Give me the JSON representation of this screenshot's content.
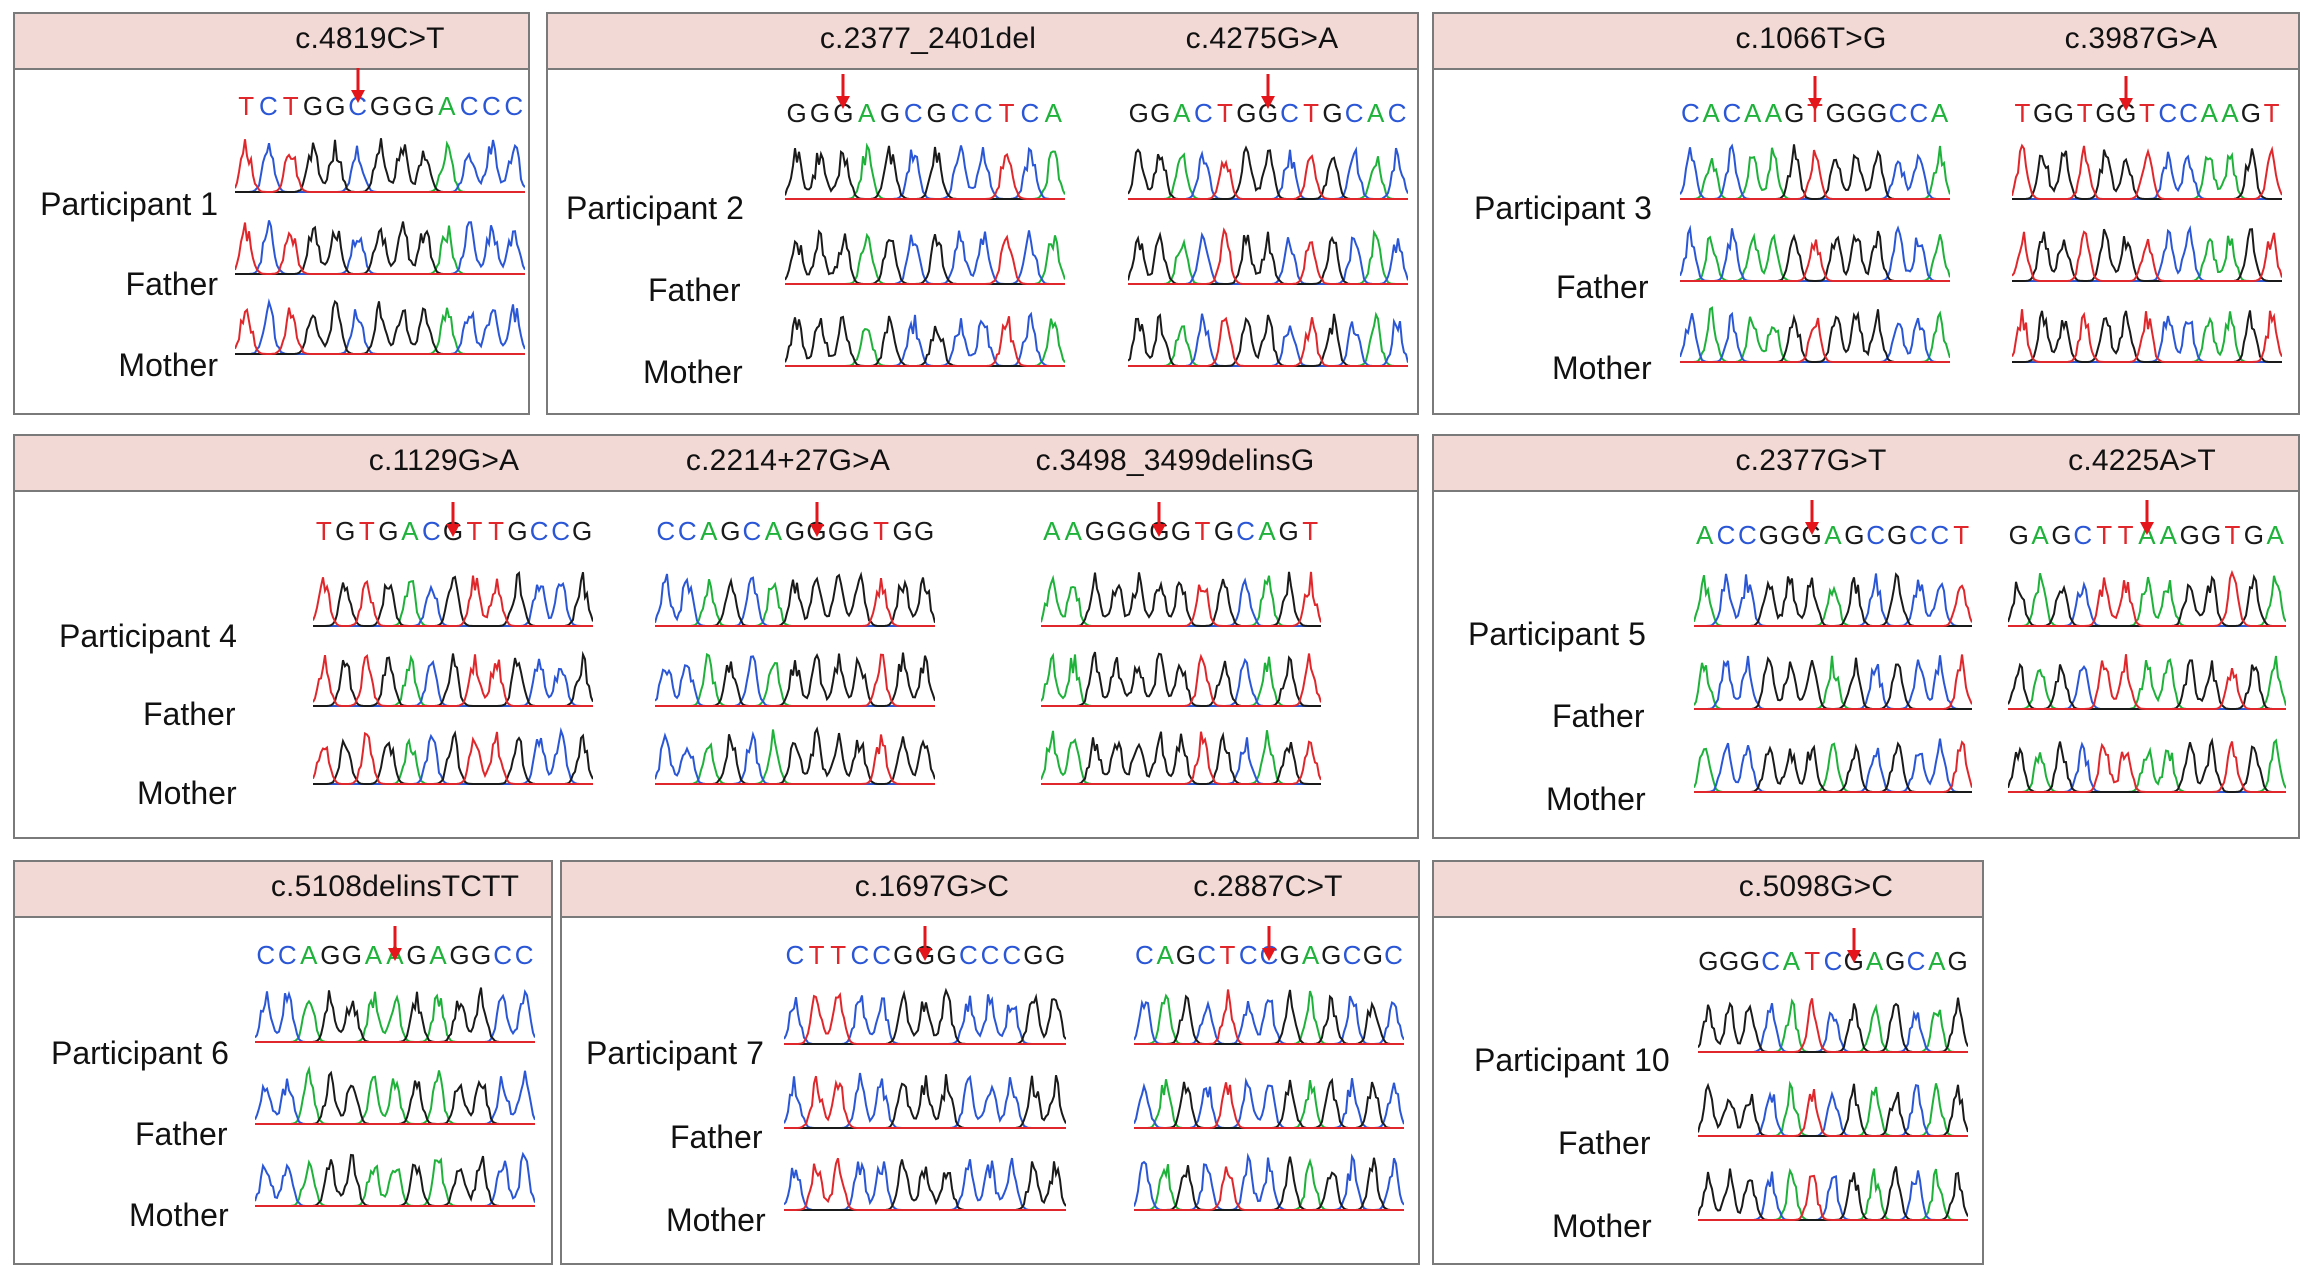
{
  "colors": {
    "A": "#1fb23b",
    "C": "#2b57d6",
    "G": "#1a1a1a",
    "T": "#e0282c",
    "arrow": "#e4161b",
    "header_bg": "#f2d9d5",
    "border": "#7a7a7a"
  },
  "icons": {
    "arrow": "down-arrow-icon"
  },
  "panels": [
    {
      "id": "p1",
      "participant": "Participant 1",
      "father": "Father",
      "mother": "Mother",
      "variants": [
        {
          "label": "c.4819C>T",
          "sequence": "TCTGGCGGGACCC",
          "arrow_index": 5
        }
      ]
    },
    {
      "id": "p2",
      "participant": "Participant 2",
      "father": "Father",
      "mother": "Mother",
      "variants": [
        {
          "label": "c.2377_2401del",
          "sequence": "GGGAGCGCCTCA",
          "arrow_index": 2
        },
        {
          "label": "c.4275G>A",
          "sequence": "GGACTGGCTGCAC",
          "arrow_index": 6
        }
      ]
    },
    {
      "id": "p3",
      "participant": "Participant 3",
      "father": "Father",
      "mother": "Mother",
      "variants": [
        {
          "label": "c.1066T>G",
          "sequence": "CACAAGTGGGCCA",
          "arrow_index": 6
        },
        {
          "label": "c.3987G>A",
          "sequence": "TGGTGGTCCAAGT",
          "arrow_index": 5
        }
      ]
    },
    {
      "id": "p4",
      "participant": "Participant 4",
      "father": "Father",
      "mother": "Mother",
      "variants": [
        {
          "label": "c.1129G>A",
          "sequence": "TGTGACGTTGCCG",
          "arrow_index": 6
        },
        {
          "label": "c.2214+27G>A",
          "sequence": "CCAGCAGGGGTGG",
          "arrow_index": 7
        },
        {
          "label": "c.3498_3499delinsG",
          "sequence": "AAGGGGGTGCAGT",
          "arrow_index": 5
        }
      ]
    },
    {
      "id": "p5",
      "participant": "Participant 5",
      "father": "Father",
      "mother": "Mother",
      "variants": [
        {
          "label": "c.2377G>T",
          "sequence": "ACCGGGAGCGCCT",
          "arrow_index": 5
        },
        {
          "label": "c.4225A>T",
          "sequence": "GAGCTTAAGGTGA",
          "arrow_index": 6
        }
      ]
    },
    {
      "id": "p6",
      "participant": "Participant 6",
      "father": "Father",
      "mother": "Mother",
      "variants": [
        {
          "label": "c.5108delinsTCTT",
          "sequence": "CCAGGAAGAGGCC",
          "arrow_index": 6
        }
      ]
    },
    {
      "id": "p7",
      "participant": "Participant 7",
      "father": "Father",
      "mother": "Mother",
      "variants": [
        {
          "label": "c.1697G>C",
          "sequence": "CTTCCGGGCCCGG",
          "arrow_index": 6
        },
        {
          "label": "c.2887C>T",
          "sequence": "CAGCTCCGAGCGC",
          "arrow_index": 6
        }
      ]
    },
    {
      "id": "p10",
      "participant": "Participant 10",
      "father": "Father",
      "mother": "Mother",
      "variants": [
        {
          "label": "c.5098G>C",
          "sequence": "GGGCATCGAGCAG",
          "arrow_index": 7
        }
      ]
    }
  ]
}
